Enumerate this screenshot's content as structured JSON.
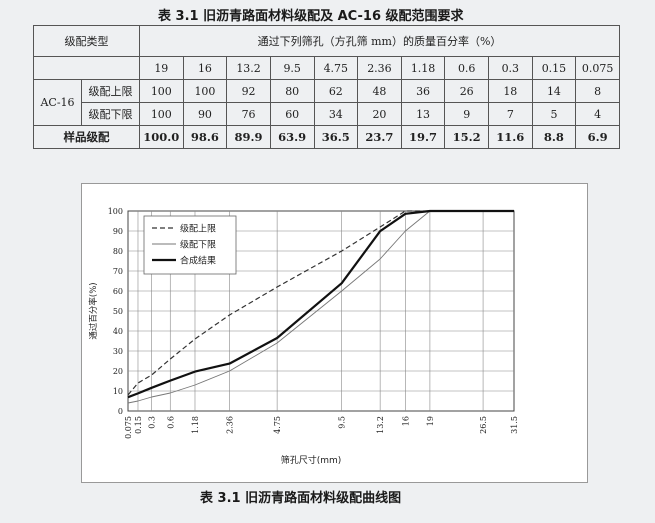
{
  "table": {
    "caption": "表 3.1    旧沥青路面材料级配及 AC-16 级配范围要求",
    "grade_type_label": "级配类型",
    "passing_header": "通过下列筛孔（方孔筛 mm）的质量百分率（%）",
    "sieves": [
      "19",
      "16",
      "13.2",
      "9.5",
      "4.75",
      "2.36",
      "1.18",
      "0.6",
      "0.3",
      "0.15",
      "0.075"
    ],
    "ac_label": "AC-16",
    "upper_label": "级配上限",
    "lower_label": "级配下限",
    "sample_label": "样品级配",
    "upper": [
      "100",
      "100",
      "92",
      "80",
      "62",
      "48",
      "36",
      "26",
      "18",
      "14",
      "8"
    ],
    "lower": [
      "100",
      "90",
      "76",
      "60",
      "34",
      "20",
      "13",
      "9",
      "7",
      "5",
      "4"
    ],
    "sample": [
      "100.0",
      "98.6",
      "89.9",
      "63.9",
      "36.5",
      "23.7",
      "19.7",
      "15.2",
      "11.6",
      "8.8",
      "6.9"
    ]
  },
  "chart_caption": "表 3.1  旧沥青路面材料级配曲线图",
  "chart_data": {
    "type": "line",
    "xlabel": "筛孔尺寸(mm)",
    "ylabel": "通过百分率(%)",
    "ylim": [
      0,
      100
    ],
    "y_ticks": [
      "0",
      "10",
      "20",
      "30",
      "40",
      "50",
      "60",
      "70",
      "80",
      "90",
      "100"
    ],
    "x_ticks": [
      "0.075",
      "0.15",
      "0.3",
      "0.6",
      "1.18",
      "2.36",
      "4.75",
      "9.5",
      "13.2",
      "16",
      "19",
      "26.5",
      "31.5"
    ],
    "x_tick_pos": [
      0.075,
      0.15,
      0.3,
      0.6,
      1.18,
      2.36,
      4.75,
      9.5,
      13.2,
      16,
      19,
      26.5,
      31.5
    ],
    "legend_position": "top-left",
    "grid": true,
    "series": [
      {
        "name": "级配上限",
        "style": "dashed",
        "color": "#333333",
        "x": [
          0.075,
          0.15,
          0.3,
          0.6,
          1.18,
          2.36,
          4.75,
          9.5,
          13.2,
          16,
          19,
          26.5,
          31.5
        ],
        "y": [
          8,
          14,
          18,
          26,
          36,
          48,
          62,
          80,
          92,
          100,
          100,
          100,
          100
        ]
      },
      {
        "name": "级配下限",
        "style": "thin",
        "color": "#777777",
        "x": [
          0.075,
          0.15,
          0.3,
          0.6,
          1.18,
          2.36,
          4.75,
          9.5,
          13.2,
          16,
          19,
          26.5,
          31.5
        ],
        "y": [
          4,
          5,
          7,
          9,
          13,
          20,
          34,
          60,
          76,
          90,
          100,
          100,
          100
        ]
      },
      {
        "name": "合成结果",
        "style": "bold",
        "color": "#111111",
        "x": [
          0.075,
          0.15,
          0.3,
          0.6,
          1.18,
          2.36,
          4.75,
          9.5,
          13.2,
          16,
          19,
          26.5,
          31.5
        ],
        "y": [
          6.9,
          8.8,
          11.6,
          15.2,
          19.7,
          23.7,
          36.5,
          63.9,
          89.9,
          98.6,
          100,
          100,
          100
        ]
      }
    ]
  }
}
